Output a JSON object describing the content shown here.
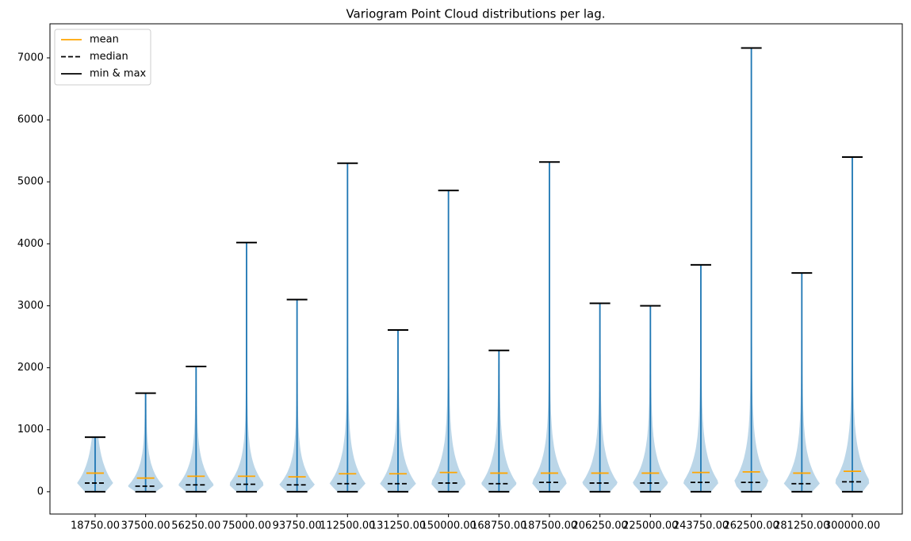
{
  "chart_data": {
    "type": "violin",
    "title": "Variogram Point Cloud distributions per lag.",
    "categories": [
      "18750.00",
      "37500.00",
      "56250.00",
      "75000.00",
      "93750.00",
      "112500.00",
      "131250.00",
      "150000.00",
      "168750.00",
      "187500.00",
      "206250.00",
      "225000.00",
      "243750.00",
      "262500.00",
      "281250.00",
      "300000.00"
    ],
    "series": [
      {
        "name": "mean",
        "color": "#ffa500",
        "values": [
          300,
          220,
          250,
          250,
          240,
          290,
          290,
          310,
          300,
          300,
          300,
          300,
          310,
          320,
          300,
          330
        ]
      },
      {
        "name": "median",
        "color": "#000000",
        "linestyle": "dashed",
        "values": [
          140,
          90,
          110,
          120,
          110,
          130,
          130,
          140,
          130,
          150,
          140,
          140,
          150,
          150,
          130,
          160
        ]
      },
      {
        "name": "min & max",
        "color": "#000000",
        "min": [
          0,
          0,
          0,
          0,
          0,
          0,
          0,
          0,
          0,
          0,
          0,
          0,
          0,
          0,
          0,
          0
        ],
        "max": [
          880,
          1590,
          2020,
          4020,
          3100,
          5300,
          2610,
          4860,
          2280,
          5320,
          3040,
          3000,
          3660,
          7160,
          3530,
          5400
        ]
      }
    ],
    "line_color": "#1f77b4",
    "body_color": "#1f77b4",
    "ylim": [
      -360,
      7550
    ],
    "yticks": [
      0,
      1000,
      2000,
      3000,
      4000,
      5000,
      6000,
      7000
    ],
    "legend": "upper left"
  }
}
